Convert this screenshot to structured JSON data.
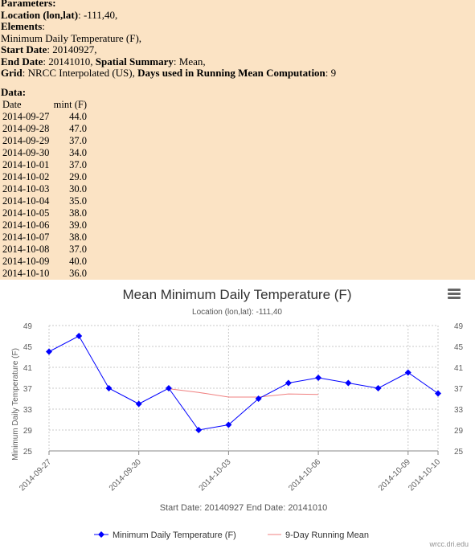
{
  "params": {
    "heading": "Parameters",
    "location_label": "Location (lon,lat)",
    "location_value": "-111,40,",
    "elements_label": "Elements",
    "elements_value": "Minimum Daily Temperature (F),",
    "start_label": "Start Date",
    "start_value": "20140927,",
    "end_label": "End Date",
    "end_value": "20141010,",
    "spatial_label": "Spatial Summary",
    "spatial_value": "Mean,",
    "grid_label": "Grid",
    "grid_value": "NRCC Interpolated (US),",
    "days_label": "Days used in Running Mean Computation",
    "days_value": "9"
  },
  "data_table": {
    "title": "Data",
    "headers": [
      "Date",
      "mint (F)"
    ],
    "rows": [
      [
        "2014-09-27",
        "44.0"
      ],
      [
        "2014-09-28",
        "47.0"
      ],
      [
        "2014-09-29",
        "37.0"
      ],
      [
        "2014-09-30",
        "34.0"
      ],
      [
        "2014-10-01",
        "37.0"
      ],
      [
        "2014-10-02",
        "29.0"
      ],
      [
        "2014-10-03",
        "30.0"
      ],
      [
        "2014-10-04",
        "35.0"
      ],
      [
        "2014-10-05",
        "38.0"
      ],
      [
        "2014-10-06",
        "39.0"
      ],
      [
        "2014-10-07",
        "38.0"
      ],
      [
        "2014-10-08",
        "37.0"
      ],
      [
        "2014-10-09",
        "40.0"
      ],
      [
        "2014-10-10",
        "36.0"
      ]
    ]
  },
  "chart_data": {
    "type": "line",
    "title": "Mean Minimum Daily Temperature (F)",
    "subtitle": "Location (lon,lat): -111,40",
    "xlabel": "Start Date: 20140927 End Date: 20141010",
    "ylabel": "Minimum Daily Temperature (F)",
    "ylim": [
      25,
      49
    ],
    "yticks": [
      25,
      29,
      33,
      37,
      41,
      45,
      49
    ],
    "x": [
      "2014-09-27",
      "2014-09-28",
      "2014-09-29",
      "2014-09-30",
      "2014-10-01",
      "2014-10-02",
      "2014-10-03",
      "2014-10-04",
      "2014-10-05",
      "2014-10-06",
      "2014-10-07",
      "2014-10-08",
      "2014-10-09",
      "2014-10-10"
    ],
    "xtick_labels": [
      "2014-09-27",
      "2014-09-30",
      "2014-10-03",
      "2014-10-06",
      "2014-10-09",
      "2014-10-10"
    ],
    "series": [
      {
        "name": "Minimum Daily Temperature (F)",
        "color": "#0000ff",
        "marker": "diamond",
        "values": [
          44,
          47,
          37,
          34,
          37,
          29,
          30,
          35,
          38,
          39,
          38,
          37,
          40,
          36
        ]
      },
      {
        "name": "9-Day Running Mean",
        "color": "#f08080",
        "marker": "none",
        "values": [
          null,
          null,
          null,
          null,
          36.9,
          36.2,
          35.3,
          35.3,
          35.9,
          35.8,
          null,
          null,
          null,
          null
        ]
      }
    ],
    "grid": true,
    "legend": "bottom-center"
  },
  "credit": "wrcc.dri.edu"
}
